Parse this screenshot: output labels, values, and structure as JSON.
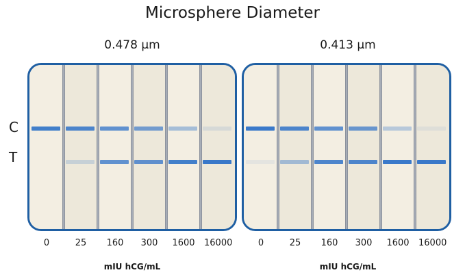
{
  "title": "Microsphere Diameter",
  "labels": {
    "control": "C",
    "test": "T"
  },
  "unit_label": "mIU hCG/mL",
  "panels": [
    {
      "diameter": "0.478 µm",
      "concentrations": [
        "0",
        "25",
        "160",
        "300",
        "1600",
        "16000"
      ],
      "control_intensity": [
        0.9,
        0.85,
        0.75,
        0.65,
        0.4,
        0.12
      ],
      "test_intensity": [
        0.0,
        0.2,
        0.75,
        0.75,
        0.9,
        0.95
      ]
    },
    {
      "diameter": "0.413 µm",
      "concentrations": [
        "0",
        "25",
        "160",
        "300",
        "1600",
        "16000"
      ],
      "control_intensity": [
        0.95,
        0.85,
        0.75,
        0.7,
        0.3,
        0.08
      ],
      "test_intensity": [
        0.08,
        0.4,
        0.85,
        0.85,
        0.95,
        0.95
      ]
    }
  ],
  "colors": {
    "border": "#1f5fa3",
    "band": "#2f72c8",
    "strip": "#f1ecdf"
  }
}
